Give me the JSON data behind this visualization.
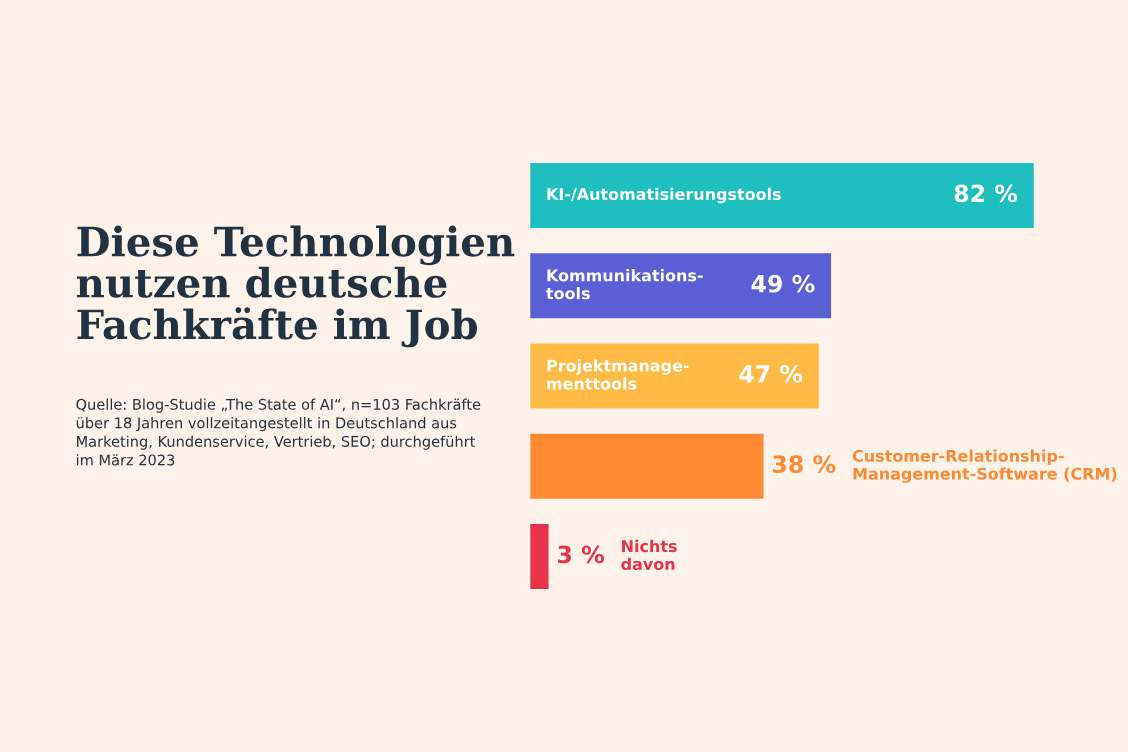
{
  "chart_data": {
    "type": "bar",
    "orientation": "horizontal",
    "title": "Diese Technologien\nnutzen deutsche\nFachkräfte im Job",
    "categories": [
      "KI-/Automatisierungstools",
      "Kommunikations-\ntools",
      "Projektmanage-\nmenttools",
      "Customer-Relationship-\nManagement-Software (CRM)",
      "Nichts\ndavon"
    ],
    "values": [
      82,
      49,
      47,
      38,
      3
    ],
    "annotations": [
      "Quelle: Blog-Studie „The State of AI“, n=103 Fachkräfte über 18 Jahren vollzeitangestellt in Deutschland aus Marketing, Kundenservice, Vertrieb, SEO; durchgeführt im März 2023"
    ],
    "colors": [
      "#1fbfbf",
      "#5a5fd6",
      "#ffbb45",
      "#ff8a33",
      "#e8334a"
    ],
    "value_labels": [
      "82 %",
      "49 %",
      "47 %",
      "38 %",
      "3 %"
    ]
  }
}
